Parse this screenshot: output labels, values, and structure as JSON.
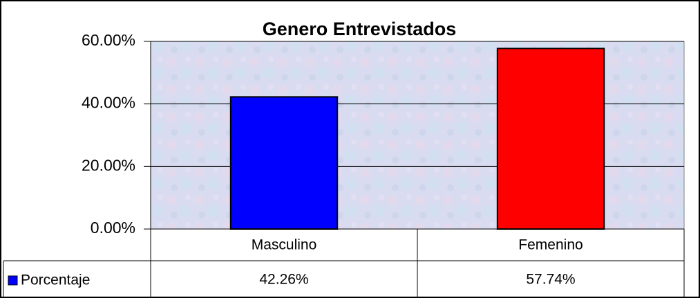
{
  "chart_data": {
    "type": "bar",
    "title": "Genero Entrevistados",
    "categories": [
      "Masculino",
      "Femenino"
    ],
    "series": [
      {
        "name": "Porcentaje",
        "colors": [
          "#0000ff",
          "#ff0000"
        ],
        "values": [
          42.26,
          57.74
        ],
        "value_labels": [
          "42.26%",
          "57.74%"
        ]
      }
    ],
    "ylim": [
      0,
      60
    ],
    "yticks": [
      {
        "value": 0,
        "label": "0.00%"
      },
      {
        "value": 20,
        "label": "20.00%"
      },
      {
        "value": 40,
        "label": "40.00%"
      },
      {
        "value": 60,
        "label": "60.00%"
      }
    ],
    "grid": true
  }
}
